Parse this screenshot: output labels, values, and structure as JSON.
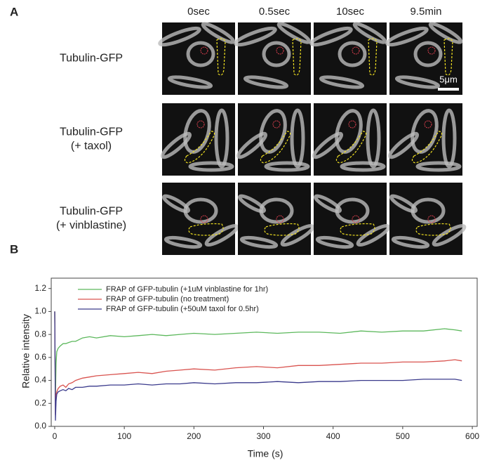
{
  "panel_a": {
    "label": "A",
    "columns": [
      "0sec",
      "0.5sec",
      "10sec",
      "9.5min"
    ],
    "rows": [
      [
        "Tubulin-GFP"
      ],
      [
        "Tubulin-GFP",
        "(+ taxol)"
      ],
      [
        "Tubulin-GFP",
        "(+ vinblastine)"
      ]
    ],
    "scale_bar": "5μm"
  },
  "panel_b": {
    "label": "B"
  },
  "chart_data": {
    "type": "line",
    "x_label": "Time (s)",
    "y_label": "Relative intensity",
    "x": [
      0,
      1,
      2,
      3,
      5,
      8,
      12,
      16,
      20,
      25,
      30,
      40,
      50,
      60,
      80,
      100,
      120,
      140,
      160,
      180,
      200,
      230,
      260,
      290,
      320,
      350,
      380,
      410,
      440,
      470,
      500,
      530,
      560,
      575,
      585
    ],
    "series": [
      {
        "name": "FRAP of GFP-tubulin (+1uM vinblastine for 1hr)",
        "color": "#5cb85c",
        "values": [
          1.0,
          0.25,
          0.55,
          0.65,
          0.68,
          0.7,
          0.72,
          0.72,
          0.73,
          0.74,
          0.74,
          0.77,
          0.78,
          0.77,
          0.79,
          0.78,
          0.79,
          0.8,
          0.79,
          0.8,
          0.81,
          0.8,
          0.81,
          0.82,
          0.81,
          0.82,
          0.82,
          0.81,
          0.83,
          0.82,
          0.83,
          0.83,
          0.85,
          0.84,
          0.83
        ]
      },
      {
        "name": "FRAP of GFP-tubulin (no treatment)",
        "color": "#d9534f",
        "values": [
          1.0,
          0.1,
          0.28,
          0.3,
          0.33,
          0.35,
          0.36,
          0.34,
          0.37,
          0.38,
          0.4,
          0.42,
          0.43,
          0.44,
          0.45,
          0.46,
          0.47,
          0.46,
          0.48,
          0.49,
          0.5,
          0.49,
          0.51,
          0.52,
          0.51,
          0.53,
          0.53,
          0.54,
          0.55,
          0.55,
          0.56,
          0.56,
          0.57,
          0.58,
          0.57
        ]
      },
      {
        "name": "FRAP of GFP-tubulin (+50uM taxol for 0.5hr)",
        "color": "#3a3a8c",
        "values": [
          1.0,
          0.05,
          0.22,
          0.28,
          0.3,
          0.31,
          0.32,
          0.31,
          0.33,
          0.32,
          0.34,
          0.34,
          0.35,
          0.35,
          0.36,
          0.36,
          0.37,
          0.36,
          0.37,
          0.37,
          0.38,
          0.37,
          0.38,
          0.38,
          0.39,
          0.38,
          0.39,
          0.39,
          0.4,
          0.4,
          0.4,
          0.41,
          0.41,
          0.41,
          0.4
        ]
      }
    ],
    "xlim": [
      -5,
      607
    ],
    "xticks": [
      0,
      100,
      200,
      300,
      400,
      500,
      600
    ],
    "ylim": [
      0,
      1.29
    ],
    "yticks": [
      {
        "value": 0,
        "label": "0.0"
      },
      0.2,
      0.4,
      0.6,
      0.8,
      {
        "value": 1,
        "label": "1.0"
      },
      1.2
    ],
    "grid": false,
    "legend": "upper left"
  }
}
